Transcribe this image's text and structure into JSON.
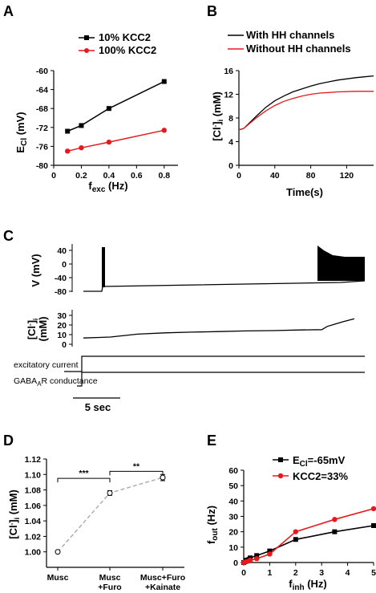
{
  "panels": {
    "A": "A",
    "B": "B",
    "C": "C",
    "D": "D",
    "E": "E"
  },
  "chart_data": [
    {
      "id": "A",
      "type": "line",
      "ylabel_main": "E",
      "ylabel_sub": "Cl",
      "ylabel_unit": " (mV)",
      "xlabel_main": "f",
      "xlabel_sub": "exc",
      "xlabel_unit": " (Hz)",
      "xlim": [
        0,
        0.9
      ],
      "ylim": [
        -80,
        -60
      ],
      "xticks": [
        0,
        0.2,
        0.4,
        0.6,
        0.8
      ],
      "xtick_labels": [
        "0",
        "0.2",
        "0.4",
        "0.6",
        "0.8"
      ],
      "yticks": [
        -80,
        -76,
        -72,
        -68,
        -64,
        -60
      ],
      "ytick_labels": [
        "-80",
        "-76",
        "-72",
        "-68",
        "-64",
        "-60"
      ],
      "legend_position": "top",
      "series": [
        {
          "name": "10% KCC2",
          "color": "#000000",
          "marker": "square",
          "x": [
            0.1,
            0.2,
            0.4,
            0.8
          ],
          "y": [
            -72.8,
            -71.6,
            -68.0,
            -62.3
          ]
        },
        {
          "name": "100% KCC2",
          "color": "#e8191c",
          "marker": "circle",
          "x": [
            0.1,
            0.2,
            0.4,
            0.8
          ],
          "y": [
            -77.0,
            -76.3,
            -75.1,
            -72.6
          ]
        }
      ]
    },
    {
      "id": "B",
      "type": "line",
      "ylabel_main": "[Cl",
      "ylabel_sup": "-",
      "ylabel_after": "]",
      "ylabel_sub": "i",
      "ylabel_unit": " (mM)",
      "xlabel": "Time(s)",
      "xlim": [
        0,
        150
      ],
      "ylim": [
        0,
        16
      ],
      "xticks": [
        0,
        40,
        80,
        120
      ],
      "xtick_labels": [
        "0",
        "40",
        "80",
        "120"
      ],
      "yticks": [
        0,
        4,
        8,
        12,
        16
      ],
      "ytick_labels": [
        "0",
        "4",
        "8",
        "12",
        "16"
      ],
      "legend_position": "top",
      "series": [
        {
          "name": "With HH channels",
          "color": "#000000",
          "x": [
            0,
            5,
            10,
            20,
            30,
            40,
            50,
            60,
            70,
            80,
            90,
            100,
            110,
            120,
            130,
            140,
            150
          ],
          "y": [
            6.0,
            6.2,
            6.9,
            8.4,
            9.8,
            10.9,
            11.7,
            12.4,
            12.9,
            13.4,
            13.8,
            14.1,
            14.4,
            14.6,
            14.8,
            14.95,
            15.1
          ]
        },
        {
          "name": "Without HH channels",
          "color": "#e8191c",
          "x": [
            0,
            5,
            10,
            20,
            30,
            40,
            50,
            60,
            70,
            80,
            90,
            100,
            110,
            120,
            130,
            140,
            150
          ],
          "y": [
            6.0,
            6.2,
            6.8,
            8.1,
            9.2,
            10.1,
            10.8,
            11.3,
            11.7,
            12.0,
            12.2,
            12.3,
            12.4,
            12.45,
            12.5,
            12.5,
            12.5
          ]
        }
      ]
    },
    {
      "id": "C",
      "type": "line",
      "v_ylabel": "V (mV)",
      "v_yticks": [
        40,
        0,
        -40,
        -80
      ],
      "v_ytick_labels": [
        "40",
        "0",
        "-40",
        "-80"
      ],
      "cl_ylabel_main": "[Cl",
      "cl_ylabel_sup": "-",
      "cl_ylabel_after": "]",
      "cl_ylabel_sub": "i",
      "cl_ylabel_unit": "(mM)",
      "cl_yticks": [
        30,
        20,
        10,
        0
      ],
      "cl_ytick_labels": [
        "30",
        "20",
        "10",
        "0"
      ],
      "excitatory_label": "excitatory current",
      "gaba_label_main": "GABA",
      "gaba_label_sub": "A",
      "gaba_label_rest": "R conductance",
      "scalebar_label": "5 sec",
      "trace_cl": {
        "t": [
          0,
          0.1,
          0.2,
          0.3,
          0.4,
          0.5,
          0.6,
          0.7,
          0.8,
          0.88,
          0.9,
          0.93,
          0.96,
          1.0
        ],
        "y": [
          6.5,
          7.5,
          10.5,
          11.8,
          12.6,
          13.2,
          13.8,
          14.2,
          14.8,
          15.2,
          18.5,
          21.0,
          23.5,
          26.5
        ]
      }
    },
    {
      "id": "D",
      "type": "line",
      "ylabel_main": "[Cl",
      "ylabel_sup": "-",
      "ylabel_after": "]",
      "ylabel_sub": "i",
      "ylabel_unit": " (mM)",
      "ylim": [
        0.98,
        1.12
      ],
      "yticks": [
        1.0,
        1.02,
        1.04,
        1.06,
        1.08,
        1.1,
        1.12
      ],
      "ytick_labels": [
        "1.00",
        "1.02",
        "1.04",
        "1.06",
        "1.08",
        "1.10",
        "1.12"
      ],
      "categories": [
        "Musc",
        "Musc+Furo",
        "Musc+Furo+Kainate"
      ],
      "category_lines": [
        [
          "Musc"
        ],
        [
          "Musc",
          "+Furo"
        ],
        [
          "Musc+Furo",
          "+Kainate"
        ]
      ],
      "values": [
        1.0,
        1.076,
        1.096
      ],
      "errors": [
        0.0,
        0.003,
        0.004
      ],
      "line_color": "#aaaaaa",
      "significance": [
        {
          "from": 0,
          "to": 1,
          "label": "***",
          "y": 1.095
        },
        {
          "from": 1,
          "to": 2,
          "label": "**",
          "y": 1.104
        }
      ]
    },
    {
      "id": "E",
      "type": "line",
      "ylabel_main": "f",
      "ylabel_sub": "out",
      "ylabel_unit": " (Hz)",
      "xlabel_main": "f",
      "xlabel_sub": "inh",
      "xlabel_unit": " (Hz)",
      "xlim": [
        0,
        5
      ],
      "ylim": [
        0,
        60
      ],
      "xticks": [
        0,
        1,
        2,
        3,
        4,
        5
      ],
      "xtick_labels": [
        "0",
        "1",
        "2",
        "3",
        "4",
        "5"
      ],
      "yticks": [
        0,
        10,
        20,
        30,
        40,
        50,
        60
      ],
      "ytick_labels": [
        "0",
        "10",
        "20",
        "30",
        "40",
        "50",
        "60"
      ],
      "legend_position": "top",
      "series": [
        {
          "name_main": "E",
          "name_sub": "Cl",
          "name_rest": "=-65mV",
          "color": "#000000",
          "marker": "square",
          "x": [
            0,
            0.1,
            0.2,
            0.25,
            0.5,
            1,
            2,
            3.5,
            5
          ],
          "y": [
            0,
            1.5,
            2,
            3,
            4.5,
            7.5,
            15,
            20,
            24
          ]
        },
        {
          "name_main": "KCC2=33%",
          "name_sub": "",
          "name_rest": "",
          "color": "#e8191c",
          "marker": "circle",
          "x": [
            0,
            0.1,
            0.2,
            0.25,
            0.5,
            1,
            2,
            3.5,
            5
          ],
          "y": [
            0,
            0.5,
            1,
            1.5,
            2.5,
            5.5,
            20,
            28,
            35
          ]
        }
      ]
    }
  ]
}
